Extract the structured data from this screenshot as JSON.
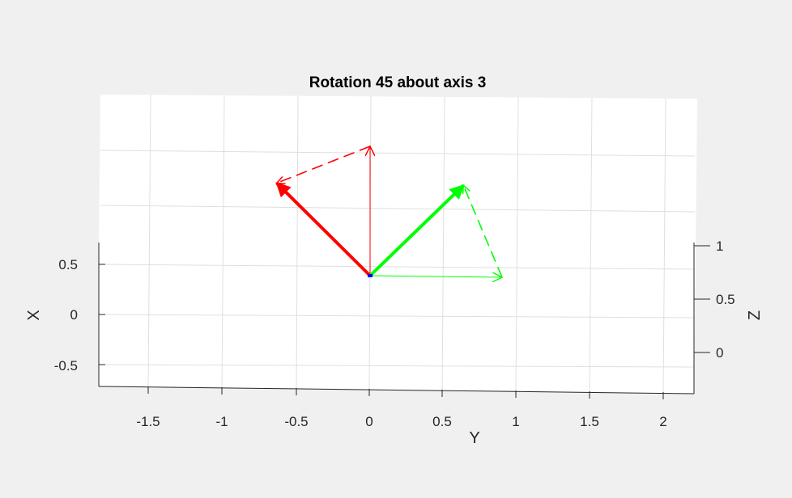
{
  "chart_data": {
    "type": "line",
    "title": "Rotation 45 about axis 3",
    "xlabel": "Y",
    "ylabel": "X",
    "zlabel": "Z",
    "x_ticks": [
      "-1.5",
      "-1",
      "-0.5",
      "0",
      "0.5",
      "1",
      "1.5",
      "2"
    ],
    "y_ticks": [
      "0.5",
      "0",
      "-0.5"
    ],
    "z_ticks": [
      "1",
      "0.5",
      "0"
    ],
    "grid": true,
    "series": [
      {
        "kind": "original",
        "axis": "x",
        "color": "#ff0000",
        "style": "thin",
        "from": [
          0,
          0,
          0
        ],
        "to": [
          1,
          0,
          0
        ]
      },
      {
        "kind": "original",
        "axis": "y",
        "color": "#00ff00",
        "style": "thin",
        "from": [
          0,
          0,
          0
        ],
        "to": [
          0,
          1,
          0
        ]
      },
      {
        "kind": "rotated",
        "axis": "x",
        "color": "#ff0000",
        "style": "thick",
        "from": [
          0,
          0,
          0
        ],
        "to": [
          0.7071,
          -0.7071,
          0
        ]
      },
      {
        "kind": "rotated",
        "axis": "y",
        "color": "#00ff00",
        "style": "thick",
        "from": [
          0,
          0,
          0
        ],
        "to": [
          0.7071,
          0.7071,
          0
        ]
      },
      {
        "kind": "arc",
        "axis": "x",
        "color": "#ff0000",
        "style": "dashed",
        "from": [
          1,
          0,
          0
        ],
        "to": [
          0.7071,
          -0.7071,
          0
        ]
      },
      {
        "kind": "arc",
        "axis": "y",
        "color": "#00ff00",
        "style": "dashed",
        "from": [
          0,
          1,
          0
        ],
        "to": [
          0.7071,
          0.7071,
          0
        ]
      }
    ],
    "origin_marker_color": "#0000ff"
  }
}
